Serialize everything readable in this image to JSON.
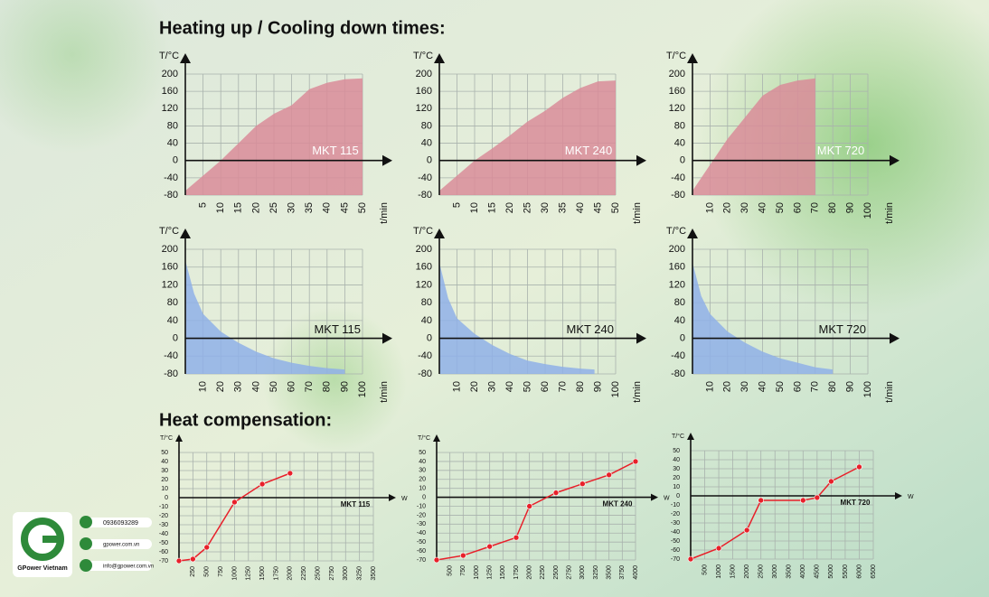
{
  "header": {
    "title": "Heating up / Cooling down times:",
    "subtitle": "Heat compensation:"
  },
  "chart_data": [
    {
      "type": "area",
      "ylabel": "T/°C",
      "xlabel": "t/min",
      "grid": true,
      "xlim": [
        0,
        50
      ],
      "ylim": [
        -80,
        200
      ],
      "xticks": [
        5,
        10,
        15,
        20,
        25,
        30,
        35,
        40,
        45,
        50
      ],
      "yticks": [
        -80,
        -40,
        0,
        40,
        80,
        120,
        160,
        200
      ],
      "x": [
        0,
        5,
        10,
        15,
        20,
        25,
        30,
        35,
        40,
        45,
        50
      ],
      "series": [
        {
          "name": "MKT 115",
          "color": "#d98c99",
          "values": [
            -70,
            -35,
            0,
            40,
            80,
            108,
            128,
            165,
            180,
            188,
            190
          ]
        }
      ]
    },
    {
      "type": "area",
      "ylabel": "T/°C",
      "xlabel": "t/min",
      "grid": true,
      "xlim": [
        0,
        50
      ],
      "ylim": [
        -80,
        200
      ],
      "xticks": [
        5,
        10,
        15,
        20,
        25,
        30,
        35,
        40,
        45,
        50
      ],
      "yticks": [
        -80,
        -40,
        0,
        40,
        80,
        120,
        160,
        200
      ],
      "x": [
        0,
        5,
        10,
        15,
        20,
        25,
        30,
        35,
        40,
        45,
        50
      ],
      "series": [
        {
          "name": "MKT 240",
          "color": "#d98c99",
          "values": [
            -70,
            -35,
            0,
            28,
            58,
            90,
            115,
            145,
            168,
            183,
            185
          ]
        }
      ]
    },
    {
      "type": "area",
      "ylabel": "T/°C",
      "xlabel": "t/min",
      "grid": true,
      "xlim": [
        0,
        100
      ],
      "ylim": [
        -80,
        200
      ],
      "xticks": [
        10,
        20,
        30,
        40,
        50,
        60,
        70,
        80,
        90,
        100
      ],
      "yticks": [
        -80,
        -40,
        0,
        40,
        80,
        120,
        160,
        200
      ],
      "x": [
        0,
        10,
        20,
        30,
        40,
        50,
        60,
        70
      ],
      "series": [
        {
          "name": "MKT 720",
          "color": "#d98c99",
          "values": [
            -70,
            -10,
            50,
            100,
            150,
            175,
            185,
            190
          ]
        }
      ]
    },
    {
      "type": "area",
      "ylabel": "T/°C",
      "xlabel": "t/min",
      "grid": true,
      "xlim": [
        0,
        100
      ],
      "ylim": [
        -80,
        200
      ],
      "xticks": [
        10,
        20,
        30,
        40,
        50,
        60,
        70,
        80,
        90,
        100
      ],
      "yticks": [
        -80,
        -40,
        0,
        40,
        80,
        120,
        160,
        200
      ],
      "x": [
        0,
        5,
        10,
        20,
        30,
        40,
        50,
        60,
        70,
        80,
        90
      ],
      "series": [
        {
          "name": "MKT 115",
          "color": "#8fb0e8",
          "values": [
            175,
            100,
            55,
            15,
            -10,
            -30,
            -45,
            -55,
            -62,
            -67,
            -70
          ]
        }
      ]
    },
    {
      "type": "area",
      "ylabel": "T/°C",
      "xlabel": "t/min",
      "grid": true,
      "xlim": [
        0,
        100
      ],
      "ylim": [
        -80,
        200
      ],
      "xticks": [
        10,
        20,
        30,
        40,
        50,
        60,
        70,
        80,
        90,
        100
      ],
      "yticks": [
        -80,
        -40,
        0,
        40,
        80,
        120,
        160,
        200
      ],
      "x": [
        0,
        5,
        10,
        20,
        30,
        40,
        50,
        60,
        70,
        80,
        88
      ],
      "series": [
        {
          "name": "MKT 240",
          "color": "#8fb0e8",
          "values": [
            170,
            90,
            45,
            10,
            -15,
            -35,
            -50,
            -58,
            -64,
            -68,
            -70
          ]
        }
      ]
    },
    {
      "type": "area",
      "ylabel": "T/°C",
      "xlabel": "t/min",
      "grid": true,
      "xlim": [
        0,
        100
      ],
      "ylim": [
        -80,
        200
      ],
      "xticks": [
        10,
        20,
        30,
        40,
        50,
        60,
        70,
        80,
        90,
        100
      ],
      "yticks": [
        -80,
        -40,
        0,
        40,
        80,
        120,
        160,
        200
      ],
      "x": [
        0,
        5,
        10,
        20,
        30,
        40,
        50,
        60,
        70,
        80
      ],
      "series": [
        {
          "name": "MKT 720",
          "color": "#8fb0e8",
          "values": [
            170,
            95,
            55,
            15,
            -10,
            -30,
            -45,
            -55,
            -65,
            -70
          ]
        }
      ]
    },
    {
      "type": "line",
      "ylabel": "T/°C",
      "xlabel": "W",
      "grid": true,
      "xlim": [
        0,
        3500
      ],
      "ylim": [
        -70,
        50
      ],
      "xticks": [
        250,
        500,
        750,
        1000,
        1250,
        1500,
        1750,
        2000,
        2250,
        2500,
        2750,
        3000,
        3250,
        3500
      ],
      "yticks": [
        -70,
        -60,
        -50,
        -40,
        -30,
        -20,
        -10,
        0,
        10,
        20,
        30,
        40,
        50
      ],
      "x": [
        0,
        250,
        500,
        1000,
        1500,
        2000
      ],
      "series": [
        {
          "name": "MKT 115",
          "color": "#e8202a",
          "values": [
            -70,
            -68,
            -55,
            -5,
            15,
            27
          ]
        }
      ]
    },
    {
      "type": "line",
      "ylabel": "T/°C",
      "xlabel": "W",
      "grid": true,
      "xlim": [
        250,
        4000
      ],
      "ylim": [
        -70,
        50
      ],
      "xticks": [
        500,
        750,
        1000,
        1250,
        1500,
        1750,
        2000,
        2250,
        2500,
        2750,
        3000,
        3250,
        3500,
        3750,
        4000
      ],
      "yticks": [
        -70,
        -60,
        -50,
        -40,
        -30,
        -20,
        -10,
        0,
        10,
        20,
        30,
        40,
        50
      ],
      "x": [
        250,
        750,
        1250,
        1750,
        2000,
        2500,
        3000,
        3500,
        4000
      ],
      "series": [
        {
          "name": "MKT 240",
          "color": "#e8202a",
          "values": [
            -70,
            -65,
            -55,
            -45,
            -10,
            5,
            15,
            25,
            40
          ]
        }
      ]
    },
    {
      "type": "line",
      "ylabel": "T/°C",
      "xlabel": "W",
      "grid": true,
      "xlim": [
        0,
        6500
      ],
      "ylim": [
        -70,
        50
      ],
      "xticks": [
        500,
        1000,
        1500,
        2000,
        2500,
        3000,
        3500,
        4000,
        4500,
        5000,
        5500,
        6000,
        6500
      ],
      "yticks": [
        -70,
        -60,
        -50,
        -40,
        -30,
        -20,
        -10,
        0,
        10,
        20,
        30,
        40,
        50
      ],
      "x": [
        0,
        1000,
        2000,
        2500,
        4000,
        4500,
        5000,
        6000
      ],
      "series": [
        {
          "name": "MKT 720",
          "color": "#e8202a",
          "values": [
            -70,
            -58,
            -38,
            -5,
            -5,
            -2,
            16,
            32
          ]
        }
      ]
    }
  ],
  "contact": {
    "brand": "GPower Vietnam",
    "phone": "0936093289",
    "website": "gpower.com.vn",
    "email": "info@gpower.com.vn"
  }
}
